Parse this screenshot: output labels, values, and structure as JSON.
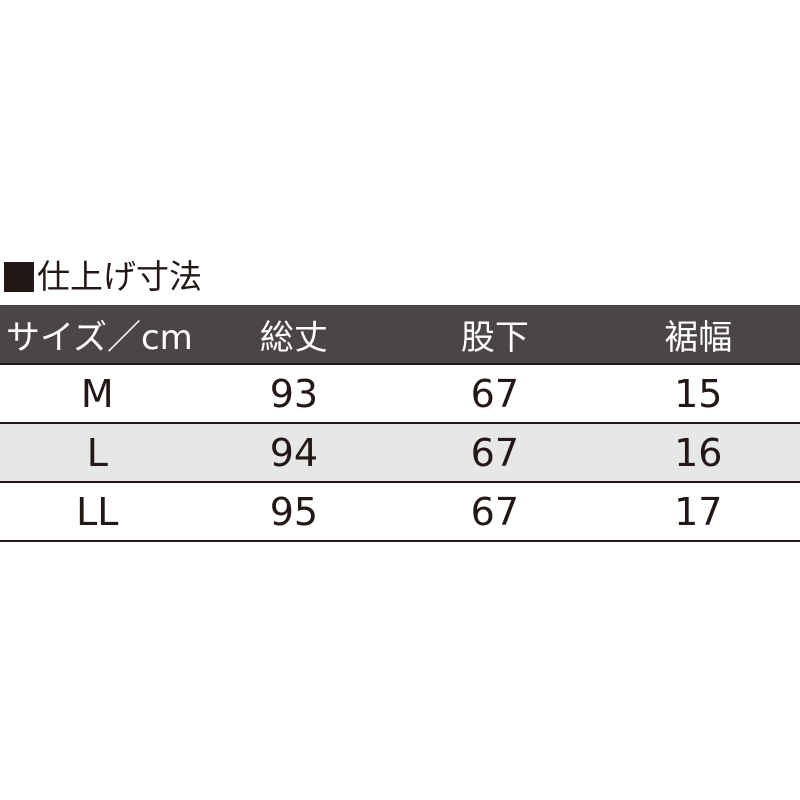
{
  "title": "仕上げ寸法",
  "headers": [
    "サイズ／cm",
    "総丈",
    "股下",
    "裾幅"
  ],
  "rows": [
    [
      "M",
      "93",
      "67",
      "15"
    ],
    [
      "L",
      "94",
      "67",
      "16"
    ],
    [
      "LL",
      "95",
      "67",
      "17"
    ]
  ],
  "colors": {
    "header_bg": "#4b4546",
    "alt_row_bg": "#e7e7e8",
    "text": "#231815"
  }
}
